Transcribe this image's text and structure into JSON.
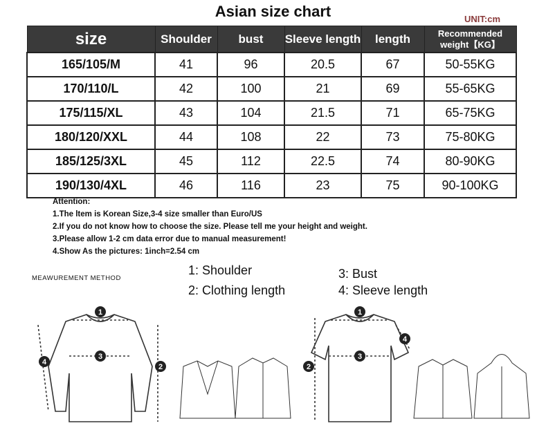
{
  "title": "Asian size chart",
  "unit": "UNIT:cm",
  "table": {
    "headers": [
      "size",
      "Shoulder",
      "bust",
      "Sleeve length",
      "length",
      "Recommended weight【KG】"
    ],
    "rows": [
      [
        "165/105/M",
        "41",
        "96",
        "20.5",
        "67",
        "50-55KG"
      ],
      [
        "170/110/L",
        "42",
        "100",
        "21",
        "69",
        "55-65KG"
      ],
      [
        "175/115/XL",
        "43",
        "104",
        "21.5",
        "71",
        "65-75KG"
      ],
      [
        "180/120/XXL",
        "44",
        "108",
        "22",
        "73",
        "75-80KG"
      ],
      [
        "185/125/3XL",
        "45",
        "112",
        "22.5",
        "74",
        "80-90KG"
      ],
      [
        "190/130/4XL",
        "46",
        "116",
        "23",
        "75",
        "90-100KG"
      ]
    ]
  },
  "attention": {
    "heading": "Attention:",
    "items": [
      "1.The ltem is Korean Size,3-4 size smaller than Euro/US",
      "2.If you do not know how to choose the size. Please tell me your height and weight.",
      "3.Please allow 1-2 cm data error due to manual measurement!",
      "4.Show As the pictures: 1inch=2.54 cm"
    ]
  },
  "measurement": {
    "label": "MEAWUREMENT METHOD",
    "legend": [
      "1:  Shoulder",
      "2:  Clothing length",
      "3:  Bust",
      "4:  Sleeve length"
    ],
    "markers": [
      "1",
      "2",
      "3",
      "4"
    ]
  }
}
